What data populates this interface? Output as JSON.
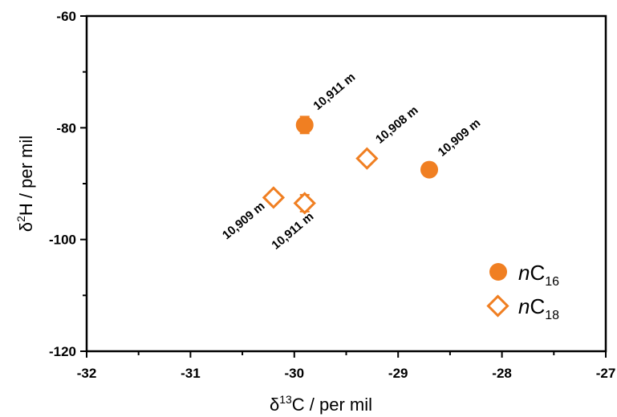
{
  "chart_data": {
    "type": "scatter",
    "xlabel": "δ13C / per mil",
    "xlabel_parts": {
      "prefix": "δ",
      "sup": "13",
      "suffix": "C / per mil"
    },
    "ylabel": "δ2H / per mil",
    "ylabel_parts": {
      "prefix": "δ",
      "sup": "2",
      "suffix": "H / per mil"
    },
    "xlim": [
      -32,
      -27
    ],
    "ylim": [
      -120,
      -60
    ],
    "xticks": [
      "-32",
      "-31",
      "-30",
      "-29",
      "-28",
      "-27"
    ],
    "yticks": [
      "-60",
      "-80",
      "-100",
      "-120"
    ],
    "xtick_values": [
      -32,
      -31,
      -30,
      -29,
      -28,
      -27
    ],
    "ytick_values": [
      -60,
      -80,
      -100,
      -120
    ],
    "grid": false,
    "legend_position": "bottom-right",
    "color": "#f07f22",
    "series": [
      {
        "name": "nC16",
        "legend_italic": "n",
        "legend_main": "C",
        "legend_sub": "16",
        "marker": "filled-circle",
        "points": [
          {
            "x": -29.9,
            "y": -79.5,
            "err": 1.5,
            "label": "10,911 m"
          },
          {
            "x": -28.7,
            "y": -87.5,
            "err": 0,
            "label": "10,909 m"
          }
        ]
      },
      {
        "name": "nC18",
        "legend_italic": "n",
        "legend_main": "C",
        "legend_sub": "18",
        "marker": "open-diamond",
        "points": [
          {
            "x": -29.3,
            "y": -85.5,
            "err": 1.0,
            "label": "10,908 m"
          },
          {
            "x": -30.2,
            "y": -92.5,
            "err": 1.0,
            "label": "10,909 m"
          },
          {
            "x": -29.9,
            "y": -93.5,
            "err": 1.5,
            "label": "10,911 m"
          }
        ]
      }
    ]
  }
}
